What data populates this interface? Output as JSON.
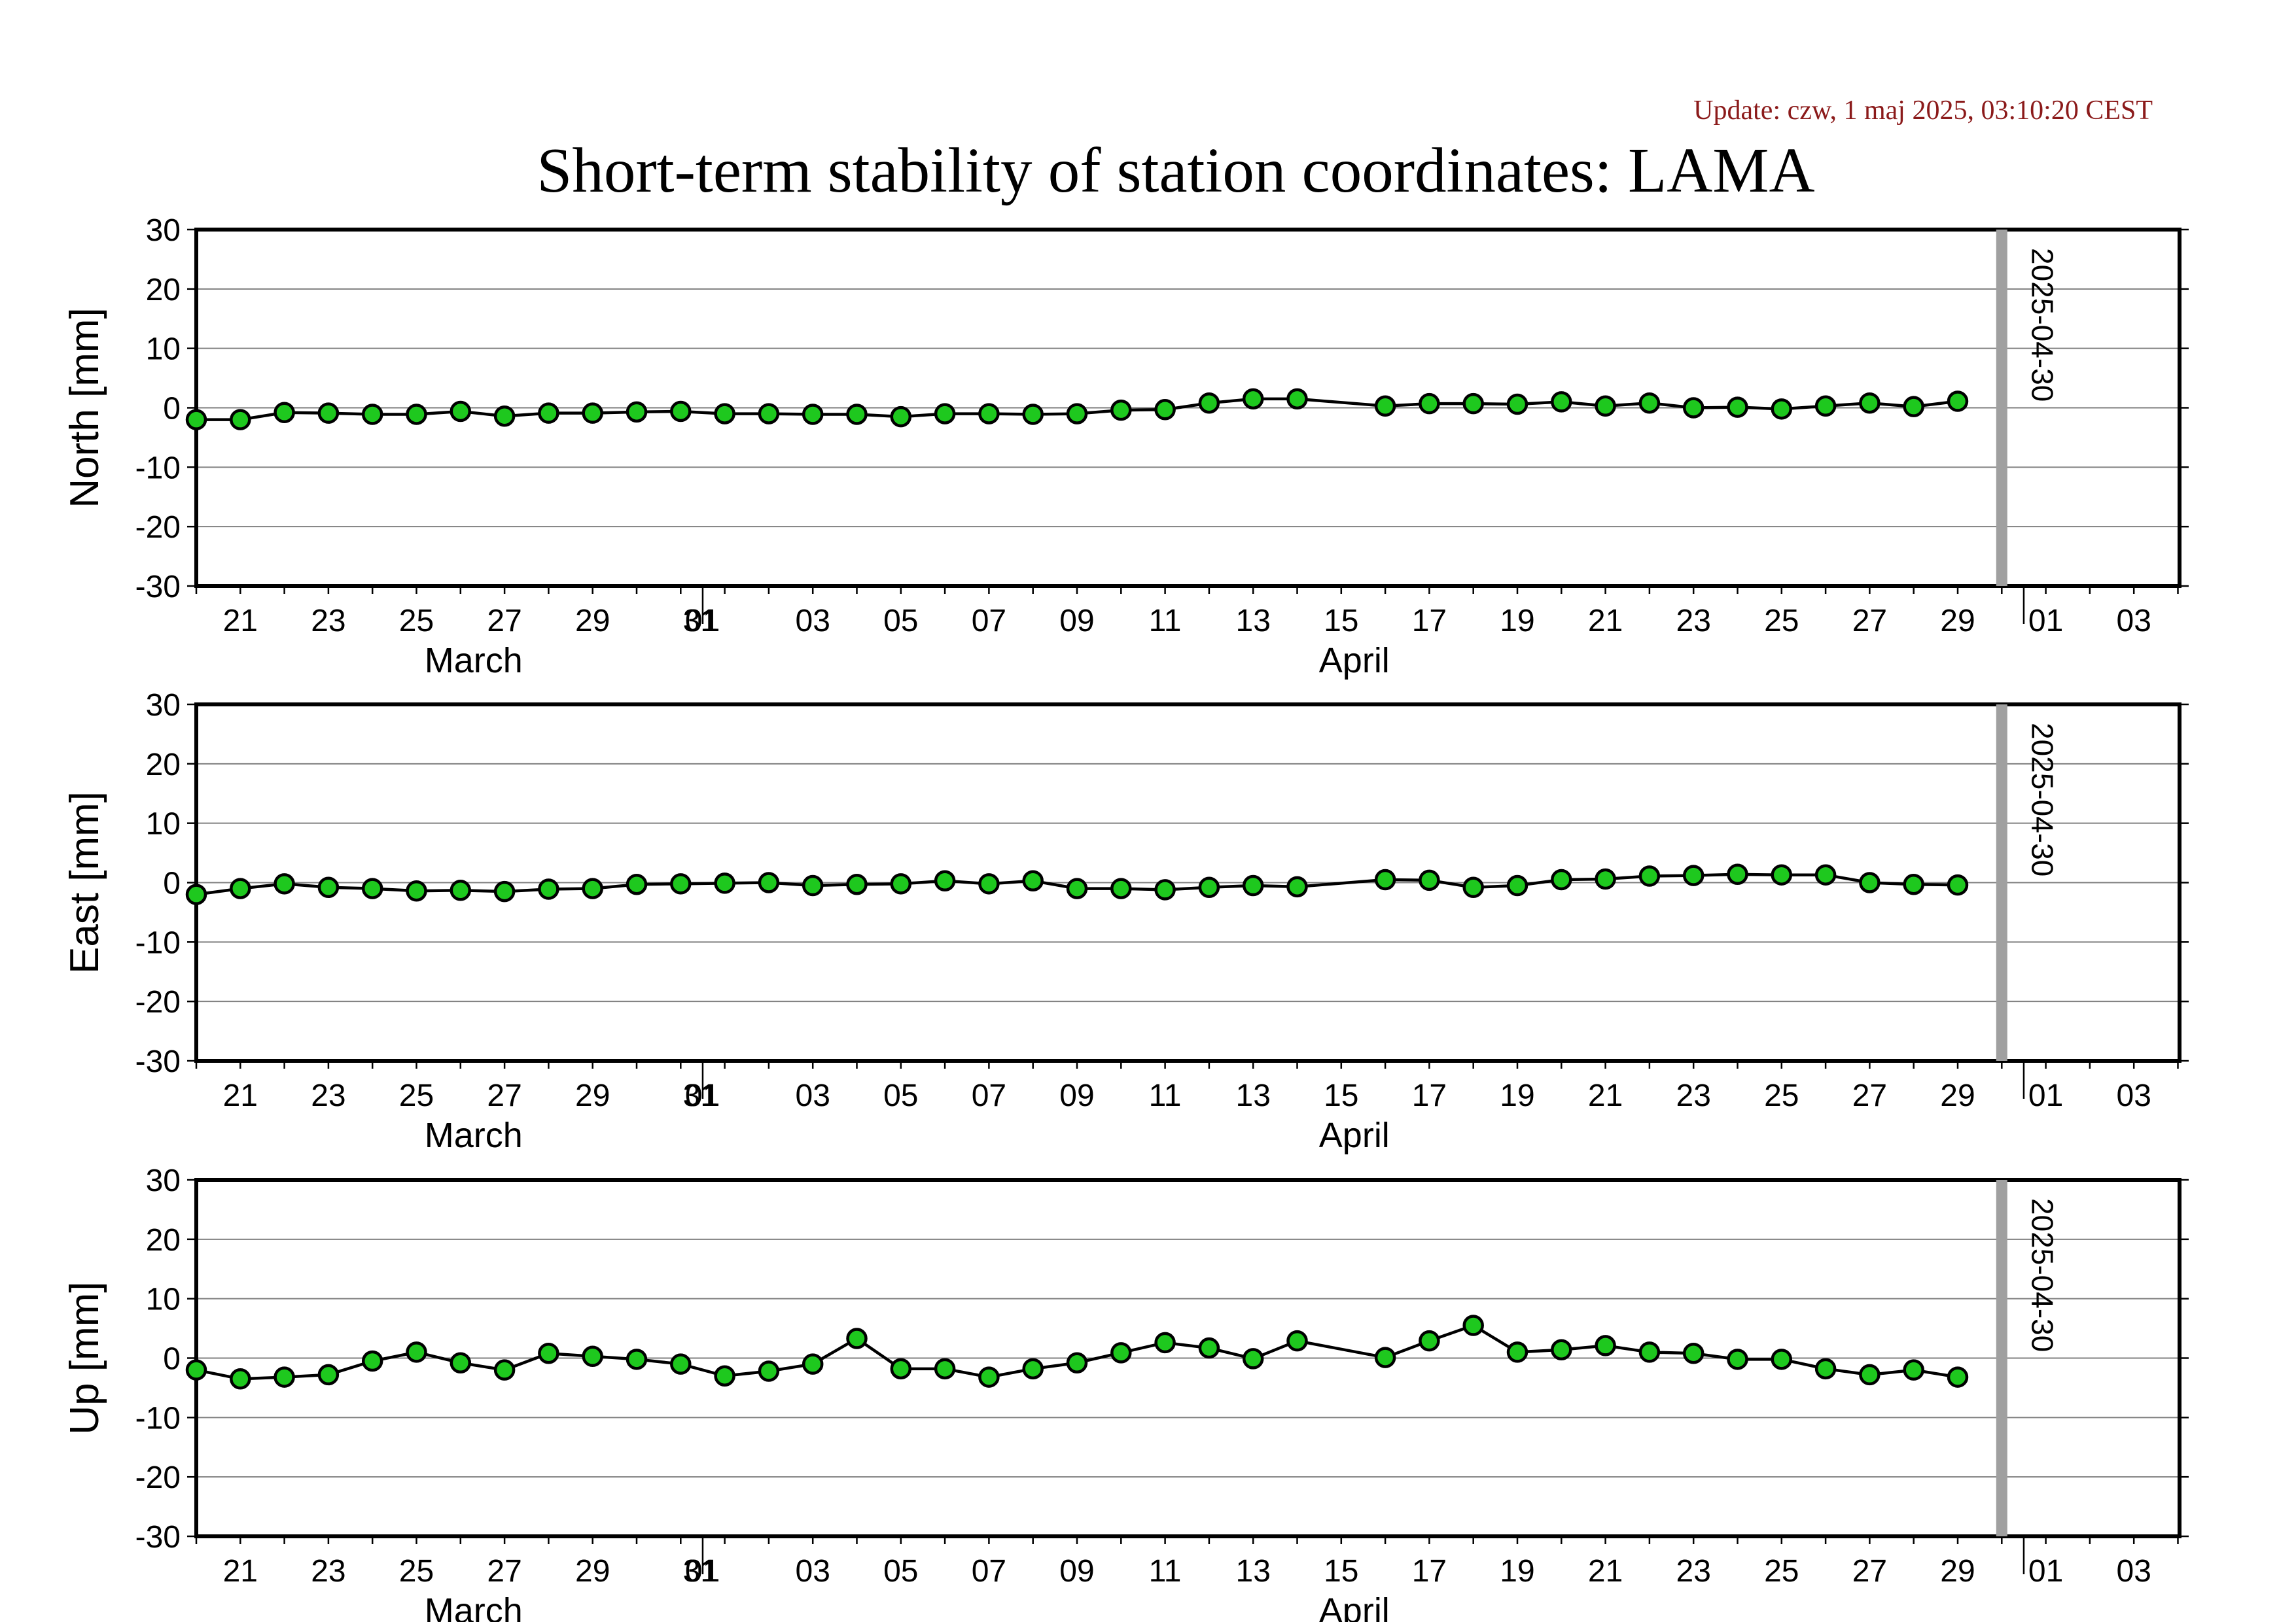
{
  "update_text": "Update: czw, 1 maj 2025, 03:10:20 CEST",
  "title": "Short-term stability of station coordinates: LAMA",
  "colors": {
    "update_text": "#8b1a1a",
    "marker_fill": "#1ec81e",
    "marker_stroke": "#000000",
    "line": "#000000",
    "grid": "#808080",
    "marker_band": "#a0a0a0"
  },
  "chart_data": [
    {
      "type": "line",
      "ylabel": "North [mm]",
      "ylim": [
        -30,
        30
      ],
      "yticks": [
        -30,
        -20,
        -10,
        0,
        10,
        20,
        30
      ],
      "grid": true,
      "xlim": [
        "2025-03-20",
        "2025-05-04"
      ],
      "x": [
        "2025-03-20",
        "2025-03-21",
        "2025-03-22",
        "2025-03-23",
        "2025-03-24",
        "2025-03-25",
        "2025-03-26",
        "2025-03-27",
        "2025-03-28",
        "2025-03-29",
        "2025-03-30",
        "2025-03-31",
        "2025-04-01",
        "2025-04-02",
        "2025-04-03",
        "2025-04-04",
        "2025-04-05",
        "2025-04-06",
        "2025-04-07",
        "2025-04-08",
        "2025-04-09",
        "2025-04-10",
        "2025-04-11",
        "2025-04-12",
        "2025-04-13",
        "2025-04-14",
        "2025-04-16",
        "2025-04-17",
        "2025-04-18",
        "2025-04-19",
        "2025-04-20",
        "2025-04-21",
        "2025-04-22",
        "2025-04-23",
        "2025-04-24",
        "2025-04-25",
        "2025-04-26",
        "2025-04-27",
        "2025-04-28",
        "2025-04-29"
      ],
      "values": [
        -2,
        -2,
        -0.8,
        -0.9,
        -1.1,
        -1.1,
        -0.6,
        -1.4,
        -0.9,
        -0.9,
        -0.7,
        -0.6,
        -1,
        -1,
        -1.1,
        -1.1,
        -1.5,
        -1,
        -1,
        -1.1,
        -1,
        -0.4,
        -0.3,
        0.8,
        1.5,
        1.5,
        0.3,
        0.7,
        0.7,
        0.6,
        1,
        0.3,
        0.8,
        0,
        0.1,
        -0.2,
        0.3,
        0.8,
        0.2,
        1.1
      ],
      "marker_date": "2025-04-30",
      "marker_label": "2025-04-30",
      "xtick_labels": [
        "21",
        "23",
        "25",
        "27",
        "29",
        "31",
        "01",
        "03",
        "05",
        "07",
        "09",
        "11",
        "13",
        "15",
        "17",
        "19",
        "21",
        "23",
        "25",
        "27",
        "29",
        "01",
        "03"
      ],
      "month_labels": [
        "March",
        "April"
      ]
    },
    {
      "type": "line",
      "ylabel": "East [mm]",
      "ylim": [
        -30,
        30
      ],
      "yticks": [
        -30,
        -20,
        -10,
        0,
        10,
        20,
        30
      ],
      "grid": true,
      "xlim": [
        "2025-03-20",
        "2025-05-04"
      ],
      "x": [
        "2025-03-20",
        "2025-03-21",
        "2025-03-22",
        "2025-03-23",
        "2025-03-24",
        "2025-03-25",
        "2025-03-26",
        "2025-03-27",
        "2025-03-28",
        "2025-03-29",
        "2025-03-30",
        "2025-03-31",
        "2025-04-01",
        "2025-04-02",
        "2025-04-03",
        "2025-04-04",
        "2025-04-05",
        "2025-04-06",
        "2025-04-07",
        "2025-04-08",
        "2025-04-09",
        "2025-04-10",
        "2025-04-11",
        "2025-04-12",
        "2025-04-13",
        "2025-04-14",
        "2025-04-16",
        "2025-04-17",
        "2025-04-18",
        "2025-04-19",
        "2025-04-20",
        "2025-04-21",
        "2025-04-22",
        "2025-04-23",
        "2025-04-24",
        "2025-04-25",
        "2025-04-26",
        "2025-04-27",
        "2025-04-28",
        "2025-04-29"
      ],
      "values": [
        -2,
        -1,
        -0.2,
        -0.8,
        -1,
        -1.4,
        -1.3,
        -1.5,
        -1.1,
        -1,
        -0.3,
        -0.2,
        -0.1,
        0,
        -0.5,
        -0.3,
        -0.2,
        0.3,
        -0.2,
        0.3,
        -1,
        -1,
        -1.2,
        -0.8,
        -0.5,
        -0.7,
        0.5,
        0.4,
        -0.8,
        -0.5,
        0.5,
        0.6,
        1.1,
        1.2,
        1.4,
        1.3,
        1.3,
        0,
        -0.3,
        -0.4
      ],
      "marker_date": "2025-04-30",
      "marker_label": "2025-04-30",
      "xtick_labels": [
        "21",
        "23",
        "25",
        "27",
        "29",
        "31",
        "01",
        "03",
        "05",
        "07",
        "09",
        "11",
        "13",
        "15",
        "17",
        "19",
        "21",
        "23",
        "25",
        "27",
        "29",
        "01",
        "03"
      ],
      "month_labels": [
        "March",
        "April"
      ]
    },
    {
      "type": "line",
      "ylabel": "Up [mm]",
      "ylim": [
        -30,
        30
      ],
      "yticks": [
        -30,
        -20,
        -10,
        0,
        10,
        20,
        30
      ],
      "grid": true,
      "xlim": [
        "2025-03-20",
        "2025-05-04"
      ],
      "x": [
        "2025-03-20",
        "2025-03-21",
        "2025-03-22",
        "2025-03-23",
        "2025-03-24",
        "2025-03-25",
        "2025-03-26",
        "2025-03-27",
        "2025-03-28",
        "2025-03-29",
        "2025-03-30",
        "2025-03-31",
        "2025-04-01",
        "2025-04-02",
        "2025-04-03",
        "2025-04-04",
        "2025-04-05",
        "2025-04-06",
        "2025-04-07",
        "2025-04-08",
        "2025-04-09",
        "2025-04-10",
        "2025-04-11",
        "2025-04-12",
        "2025-04-13",
        "2025-04-14",
        "2025-04-16",
        "2025-04-17",
        "2025-04-18",
        "2025-04-19",
        "2025-04-20",
        "2025-04-21",
        "2025-04-22",
        "2025-04-23",
        "2025-04-24",
        "2025-04-25",
        "2025-04-26",
        "2025-04-27",
        "2025-04-28",
        "2025-04-29"
      ],
      "values": [
        -2,
        -3.5,
        -3.2,
        -2.8,
        -0.5,
        1,
        -0.8,
        -2,
        0.8,
        0.3,
        -0.2,
        -1,
        -3,
        -2.2,
        -1,
        3.3,
        -1.8,
        -1.8,
        -3.2,
        -1.8,
        -0.8,
        0.9,
        2.6,
        1.7,
        -0.1,
        2.9,
        0.1,
        2.9,
        5.5,
        1,
        1.4,
        2.1,
        1,
        0.8,
        -0.2,
        -0.2,
        -1.8,
        -2.8,
        -2,
        -3.2
      ],
      "marker_date": "2025-04-30",
      "marker_label": "2025-04-30",
      "xtick_labels": [
        "21",
        "23",
        "25",
        "27",
        "29",
        "31",
        "01",
        "03",
        "05",
        "07",
        "09",
        "11",
        "13",
        "15",
        "17",
        "19",
        "21",
        "23",
        "25",
        "27",
        "29",
        "01",
        "03"
      ],
      "month_labels": [
        "March",
        "April"
      ]
    }
  ]
}
